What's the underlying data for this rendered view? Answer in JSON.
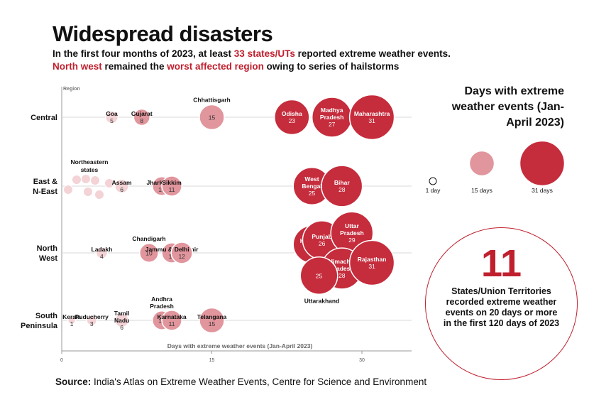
{
  "title": "Widespread disasters",
  "subtitle_line1": {
    "pre": "In the first four months of 2023, at least ",
    "highlight": "33 states/UTs",
    "post": " reported extreme weather events."
  },
  "subtitle_line2": {
    "highlight1": "North west",
    "mid": " remained the ",
    "highlight2": "worst affected region",
    "post": " owing to series of hailstorms"
  },
  "source": {
    "label": "Source:",
    "text": " India's Atlas on Extreme Weather Events, Centre for Science and Environment"
  },
  "legend": {
    "title": "Days with extreme weather events (Jan-April 2023)",
    "items": [
      {
        "value": 1,
        "label": "1 day"
      },
      {
        "value": 15,
        "label": "15 days"
      },
      {
        "value": 31,
        "label": "31 days"
      }
    ]
  },
  "callout": {
    "number": "11",
    "text": "States/Union Territories recorded extreme weather events on 20 days or more in the first 120 days of 2023"
  },
  "colors": {
    "accent": "#c0202e",
    "light": "#f3d3d6",
    "mid": "#e1959c",
    "dark": "#c52c3c"
  },
  "chart_data": {
    "type": "scatter",
    "title": "Widespread disasters",
    "xlabel": "Days with extreme weather events (Jan-April 2023)",
    "ylabel": "Region",
    "xlim": [
      0,
      35
    ],
    "x_ticks": [
      0,
      15,
      30
    ],
    "categories": [
      "Central",
      "East & N-East",
      "North West",
      "South Peninsula"
    ],
    "category_labels": [
      [
        "Central"
      ],
      [
        "East &",
        "N-East"
      ],
      [
        "North",
        "West"
      ],
      [
        "South",
        "Peninsula"
      ]
    ],
    "points": [
      {
        "region": "Central",
        "name": "Goa",
        "value": 5
      },
      {
        "region": "Central",
        "name": "Gujarat",
        "value": 8
      },
      {
        "region": "Central",
        "name": "Chhattisgarh",
        "value": 15
      },
      {
        "region": "Central",
        "name": "Odisha",
        "value": 23
      },
      {
        "region": "Central",
        "name": "Madhya Pradesh",
        "value": 27
      },
      {
        "region": "Central",
        "name": "Maharashtra",
        "value": 31
      },
      {
        "region": "East & N-East",
        "name": "Northeastern states",
        "value": 1
      },
      {
        "region": "East & N-East",
        "name": "Northeastern states",
        "value": 1
      },
      {
        "region": "East & N-East",
        "name": "Northeastern states",
        "value": 2
      },
      {
        "region": "East & N-East",
        "name": "Northeastern states",
        "value": 2
      },
      {
        "region": "East & N-East",
        "name": "Northeastern states",
        "value": 3
      },
      {
        "region": "East & N-East",
        "name": "Northeastern states",
        "value": 3
      },
      {
        "region": "East & N-East",
        "name": "Northeastern states",
        "value": 4
      },
      {
        "region": "East & N-East",
        "name": "Assam",
        "value": 6
      },
      {
        "region": "East & N-East",
        "name": "Jharkhand",
        "value": 10
      },
      {
        "region": "East & N-East",
        "name": "Sikkim",
        "value": 11
      },
      {
        "region": "East & N-East",
        "name": "West Bengal",
        "value": 25
      },
      {
        "region": "East & N-East",
        "name": "Bihar",
        "value": 28
      },
      {
        "region": "North West",
        "name": "Ladakh",
        "value": 4
      },
      {
        "region": "North West",
        "name": "Chandigarh",
        "value": 10
      },
      {
        "region": "North West",
        "name": "Jammu & Kashmir",
        "value": 11
      },
      {
        "region": "North West",
        "name": "Delhi",
        "value": 12
      },
      {
        "region": "North West",
        "name": "Haryana",
        "value": 25
      },
      {
        "region": "North West",
        "name": "Punjab",
        "value": 26
      },
      {
        "region": "North West",
        "name": "Uttar Pradesh",
        "value": 29
      },
      {
        "region": "North West",
        "name": "Himachal Pradesh",
        "value": 28
      },
      {
        "region": "North West",
        "name": "Rajasthan",
        "value": 31
      },
      {
        "region": "North West",
        "name": "Uttarakhand",
        "value": 25
      },
      {
        "region": "South Peninsula",
        "name": "Kerala",
        "value": 1
      },
      {
        "region": "South Peninsula",
        "name": "Puducherry",
        "value": 3
      },
      {
        "region": "South Peninsula",
        "name": "Tamil Nadu",
        "value": 6
      },
      {
        "region": "South Peninsula",
        "name": "Andhra Pradesh",
        "value": 10
      },
      {
        "region": "South Peninsula",
        "name": "Karnataka",
        "value": 11
      },
      {
        "region": "South Peninsula",
        "name": "Telangana",
        "value": 15
      }
    ]
  }
}
